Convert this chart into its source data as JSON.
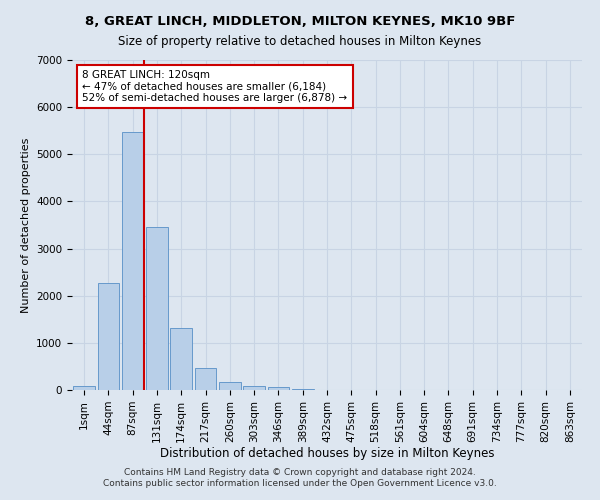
{
  "title": "8, GREAT LINCH, MIDDLETON, MILTON KEYNES, MK10 9BF",
  "subtitle": "Size of property relative to detached houses in Milton Keynes",
  "xlabel": "Distribution of detached houses by size in Milton Keynes",
  "ylabel": "Number of detached properties",
  "footnote1": "Contains HM Land Registry data © Crown copyright and database right 2024.",
  "footnote2": "Contains public sector information licensed under the Open Government Licence v3.0.",
  "bar_labels": [
    "1sqm",
    "44sqm",
    "87sqm",
    "131sqm",
    "174sqm",
    "217sqm",
    "260sqm",
    "303sqm",
    "346sqm",
    "389sqm",
    "432sqm",
    "475sqm",
    "518sqm",
    "561sqm",
    "604sqm",
    "648sqm",
    "691sqm",
    "734sqm",
    "777sqm",
    "820sqm",
    "863sqm"
  ],
  "bar_values": [
    80,
    2280,
    5480,
    3450,
    1310,
    460,
    165,
    90,
    60,
    30,
    10,
    5,
    0,
    0,
    0,
    0,
    0,
    0,
    0,
    0,
    0
  ],
  "bar_color": "#b8cfe8",
  "bar_edge_color": "#6699cc",
  "grid_color": "#c8d4e4",
  "background_color": "#dde6f0",
  "vline_color": "#cc0000",
  "annotation_text": "8 GREAT LINCH: 120sqm\n← 47% of detached houses are smaller (6,184)\n52% of semi-detached houses are larger (6,878) →",
  "annotation_box_facecolor": "#ffffff",
  "annotation_box_edgecolor": "#cc0000",
  "ylim": [
    0,
    7000
  ],
  "yticks": [
    0,
    1000,
    2000,
    3000,
    4000,
    5000,
    6000,
    7000
  ],
  "title_fontsize": 9.5,
  "subtitle_fontsize": 8.5,
  "xlabel_fontsize": 8.5,
  "ylabel_fontsize": 8.0,
  "tick_fontsize": 7.5,
  "annotation_fontsize": 7.5,
  "footnote_fontsize": 6.5
}
